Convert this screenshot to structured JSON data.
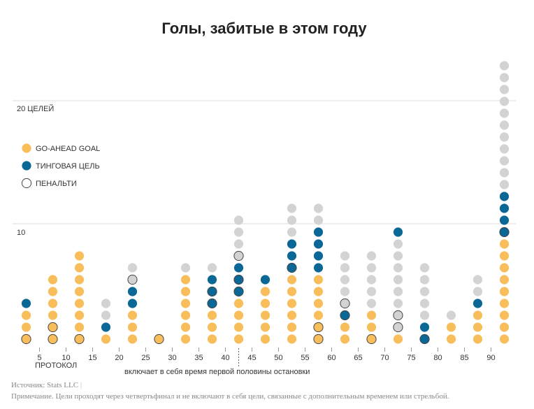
{
  "chart_data": {
    "type": "scatter",
    "title": "Голы, забитые в этом году",
    "y_label_top": "20 ЦЕЛЕЙ",
    "y_tick_mid": "10",
    "ylim": [
      0,
      24
    ],
    "gridlines": [
      10,
      20
    ],
    "x_ticks": [
      "5",
      "10",
      "15",
      "20",
      "25",
      "30",
      "35",
      "40",
      "45",
      "50",
      "55",
      "60",
      "65",
      "70",
      "75",
      "80",
      "85",
      "90"
    ],
    "x_annotation_left": "ПРОТОКОЛ",
    "x_annotation_halftime": "включает в себя время первой половины остановки",
    "legend": [
      {
        "key": "ahead",
        "label": "GO-AHEAD GOAL",
        "color": "#F7BE5B"
      },
      {
        "key": "tying",
        "label": "ТИНГОВАЯ ЦЕЛЬ",
        "color": "#0B6796"
      },
      {
        "key": "penalty",
        "label": "ПЕНАЛЬТИ",
        "color": "#ffffff"
      }
    ],
    "other_color": "#D3D3D3",
    "ahead_color": "#F7BE5B",
    "tying_color": "#0B6796",
    "columns": [
      {
        "minute": 2.5,
        "dots": [
          "P-ahead",
          "ahead",
          "ahead",
          "tying"
        ]
      },
      {
        "minute": 7.5,
        "dots": [
          "P-ahead",
          "P-ahead",
          "ahead",
          "ahead",
          "ahead",
          "ahead"
        ]
      },
      {
        "minute": 12.5,
        "dots": [
          "P-ahead",
          "ahead",
          "ahead",
          "ahead",
          "ahead",
          "ahead",
          "ahead",
          "ahead"
        ]
      },
      {
        "minute": 17.5,
        "dots": [
          "ahead",
          "tying",
          "other",
          "other"
        ]
      },
      {
        "minute": 22.5,
        "dots": [
          "ahead",
          "ahead",
          "ahead",
          "tying",
          "tying",
          "P-other",
          "other"
        ]
      },
      {
        "minute": 27.5,
        "dots": [
          "P-ahead"
        ]
      },
      {
        "minute": 32.5,
        "dots": [
          "ahead",
          "ahead",
          "ahead",
          "ahead",
          "ahead",
          "ahead",
          "other"
        ]
      },
      {
        "minute": 37.5,
        "dots": [
          "ahead",
          "ahead",
          "ahead",
          "P-tying",
          "P-tying",
          "tying",
          "other"
        ]
      },
      {
        "minute": 42.5,
        "dots": [
          "ahead",
          "ahead",
          "ahead",
          "ahead",
          "P-tying",
          "P-tying",
          "tying",
          "P-other",
          "other",
          "other",
          "other"
        ]
      },
      {
        "minute": 47.5,
        "dots": [
          "ahead",
          "ahead",
          "ahead",
          "ahead",
          "ahead",
          "tying"
        ]
      },
      {
        "minute": 52.5,
        "dots": [
          "ahead",
          "ahead",
          "ahead",
          "ahead",
          "ahead",
          "ahead",
          "P-tying",
          "tying",
          "tying",
          "other",
          "other",
          "other"
        ]
      },
      {
        "minute": 57.5,
        "dots": [
          "P-ahead",
          "P-ahead",
          "ahead",
          "ahead",
          "ahead",
          "ahead",
          "tying",
          "tying",
          "tying",
          "tying",
          "other",
          "other"
        ]
      },
      {
        "minute": 62.5,
        "dots": [
          "ahead",
          "ahead",
          "P-tying",
          "P-other",
          "other",
          "other",
          "other",
          "other"
        ]
      },
      {
        "minute": 67.5,
        "dots": [
          "P-ahead",
          "ahead",
          "ahead",
          "other",
          "other",
          "other",
          "other",
          "other"
        ]
      },
      {
        "minute": 72.5,
        "dots": [
          "ahead",
          "P-other",
          "P-other",
          "other",
          "other",
          "other",
          "other",
          "other",
          "other",
          "tying"
        ]
      },
      {
        "minute": 77.5,
        "dots": [
          "P-tying",
          "tying",
          "other",
          "other",
          "other",
          "other",
          "other"
        ]
      },
      {
        "minute": 82.5,
        "dots": [
          "ahead",
          "ahead",
          "other"
        ]
      },
      {
        "minute": 87.5,
        "dots": [
          "ahead",
          "ahead",
          "ahead",
          "tying",
          "other",
          "other"
        ]
      },
      {
        "minute": 92.5,
        "dots": [
          "ahead",
          "ahead",
          "ahead",
          "ahead",
          "ahead",
          "ahead",
          "ahead",
          "ahead",
          "ahead",
          "P-tying",
          "tying",
          "tying",
          "tying",
          "other",
          "other",
          "other",
          "other",
          "other",
          "other",
          "other",
          "other",
          "other",
          "other",
          "other"
        ]
      }
    ]
  },
  "footer": {
    "source": "Источник: Stats LLC",
    "note": "Примечание. Цели проходят через четвертьфинал и не включают в себя цели, связанные с дополнительным временем или стрельбой."
  }
}
